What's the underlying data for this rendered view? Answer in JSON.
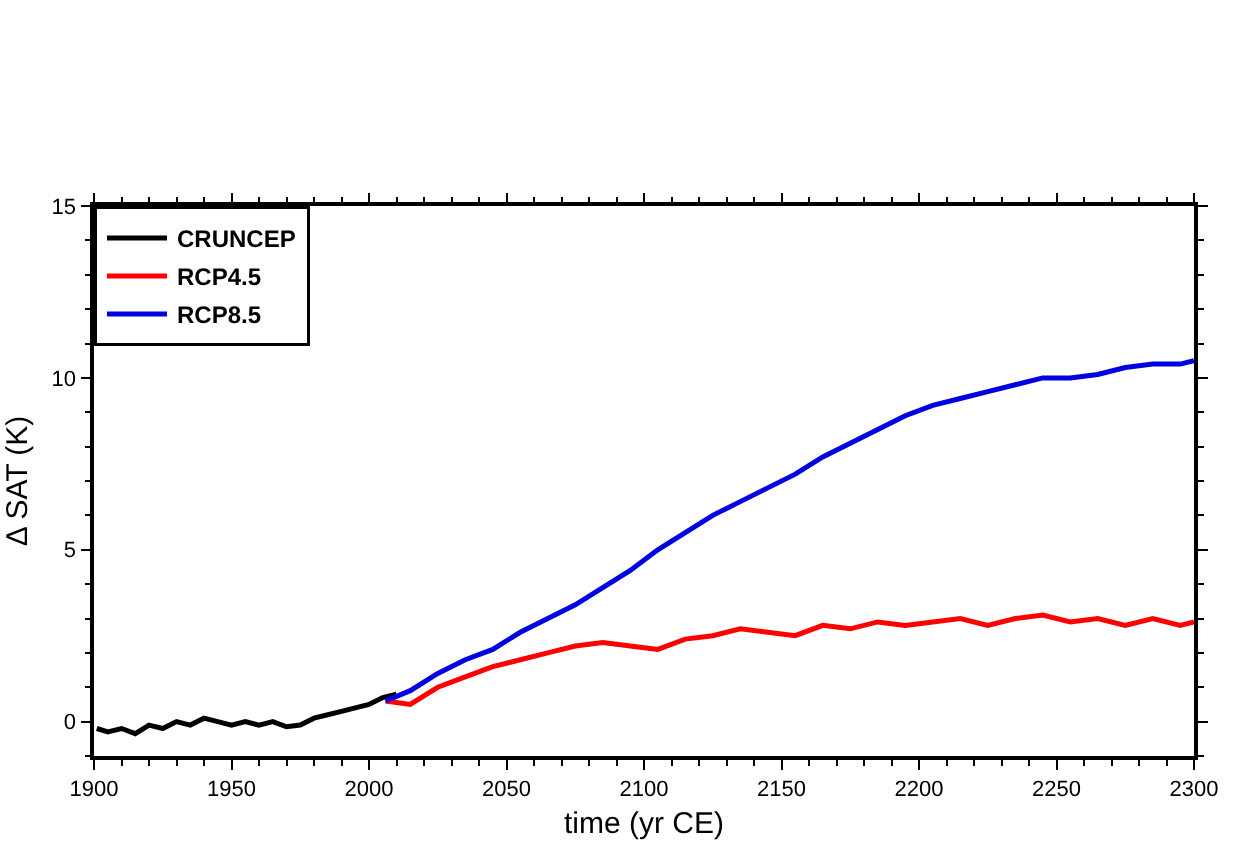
{
  "chart_data": {
    "type": "line",
    "xlabel": "time (yr CE)",
    "ylabel": "Δ SAT (K)",
    "xlim": [
      1900,
      2300
    ],
    "xticks": [
      1900,
      1950,
      2000,
      2050,
      2100,
      2150,
      2200,
      2250,
      2300
    ],
    "ylim": [
      -1,
      15
    ],
    "yticks": [
      0,
      5,
      10,
      15
    ],
    "grid": false,
    "legend": "top left",
    "marker": "none",
    "line_style": "solid",
    "series": [
      {
        "name": "CRUNCEP",
        "color": "#000000",
        "x": [
          1901,
          1905,
          1910,
          1915,
          1920,
          1925,
          1930,
          1935,
          1940,
          1945,
          1950,
          1955,
          1960,
          1965,
          1970,
          1975,
          1980,
          1985,
          1990,
          1995,
          2000,
          2005,
          2010
        ],
        "values": [
          -0.2,
          -0.3,
          -0.2,
          -0.35,
          -0.1,
          -0.2,
          0.0,
          -0.1,
          0.1,
          0.0,
          -0.1,
          0.0,
          -0.1,
          0.0,
          -0.15,
          -0.1,
          0.1,
          0.2,
          0.3,
          0.4,
          0.5,
          0.7,
          0.8
        ]
      },
      {
        "name": "RCP4.5",
        "color": "#ff0000",
        "x": [
          2006,
          2015,
          2025,
          2035,
          2045,
          2055,
          2065,
          2075,
          2085,
          2095,
          2105,
          2115,
          2125,
          2135,
          2145,
          2155,
          2165,
          2175,
          2185,
          2195,
          2205,
          2215,
          2225,
          2235,
          2245,
          2255,
          2265,
          2275,
          2285,
          2295,
          2300
        ],
        "values": [
          0.6,
          0.5,
          1.0,
          1.3,
          1.6,
          1.8,
          2.0,
          2.2,
          2.3,
          2.2,
          2.1,
          2.4,
          2.5,
          2.7,
          2.6,
          2.5,
          2.8,
          2.7,
          2.9,
          2.8,
          2.9,
          3.0,
          2.8,
          3.0,
          3.1,
          2.9,
          3.0,
          2.8,
          3.0,
          2.8,
          2.9
        ]
      },
      {
        "name": "RCP8.5",
        "color": "#0000e0",
        "x": [
          2006,
          2015,
          2025,
          2035,
          2045,
          2055,
          2065,
          2075,
          2085,
          2095,
          2105,
          2115,
          2125,
          2135,
          2145,
          2155,
          2165,
          2175,
          2185,
          2195,
          2205,
          2215,
          2225,
          2235,
          2245,
          2255,
          2265,
          2275,
          2285,
          2295,
          2300
        ],
        "values": [
          0.6,
          0.9,
          1.4,
          1.8,
          2.1,
          2.6,
          3.0,
          3.4,
          3.9,
          4.4,
          5.0,
          5.5,
          6.0,
          6.4,
          6.8,
          7.2,
          7.7,
          8.1,
          8.5,
          8.9,
          9.2,
          9.4,
          9.6,
          9.8,
          10.0,
          10.0,
          10.1,
          10.3,
          10.4,
          10.4,
          10.5
        ]
      }
    ]
  }
}
